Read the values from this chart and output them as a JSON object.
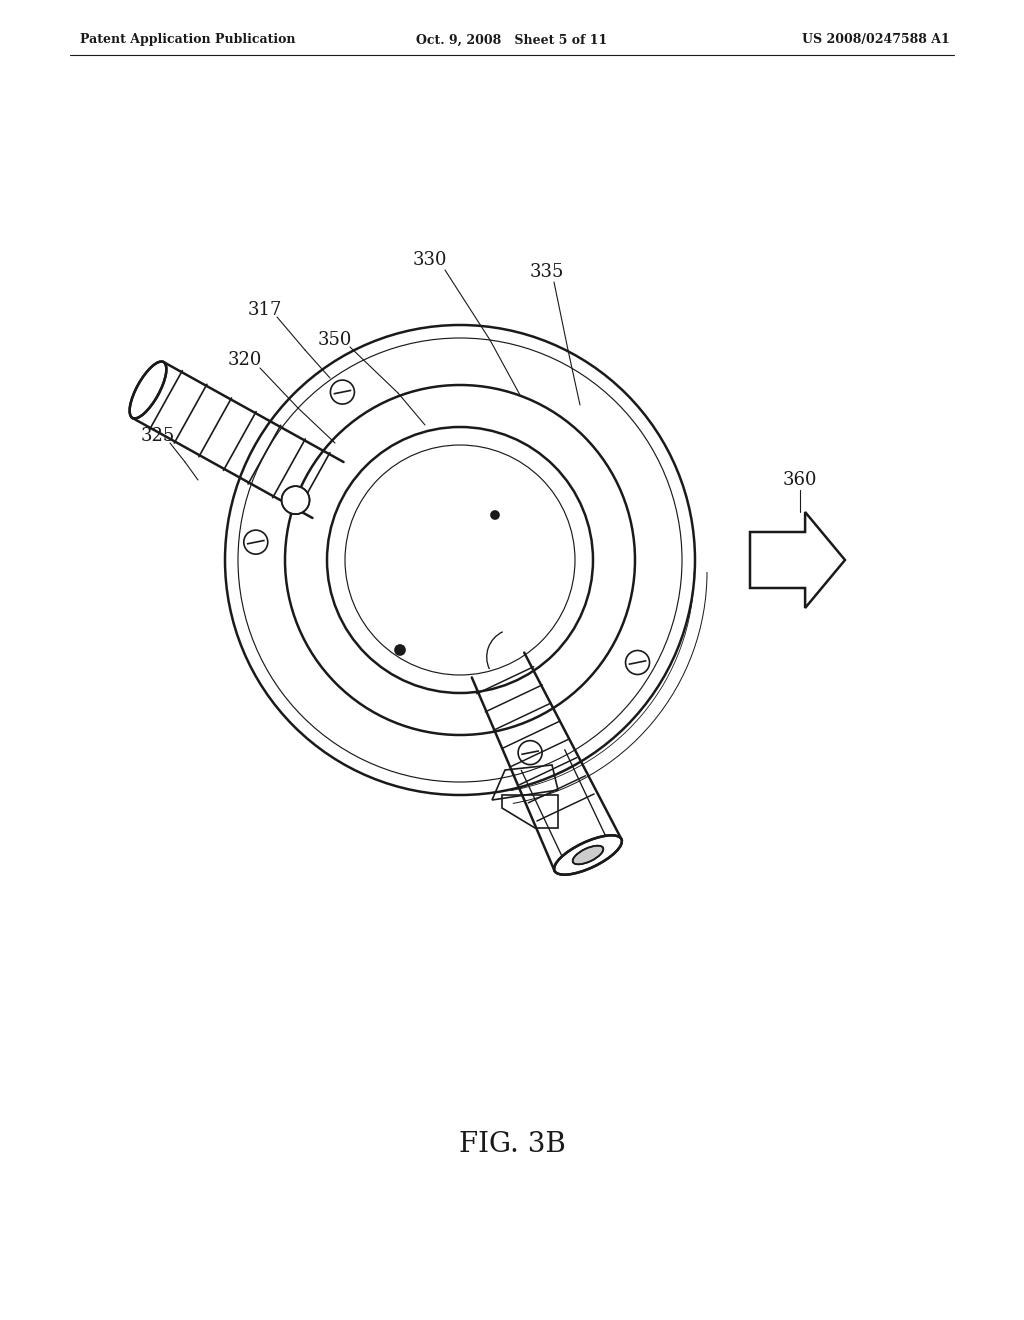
{
  "background_color": "#ffffff",
  "header_left": "Patent Application Publication",
  "header_mid": "Oct. 9, 2008   Sheet 5 of 11",
  "header_right": "US 2008/0247588 A1",
  "figure_label": "FIG. 3B",
  "line_color": "#1a1a1a",
  "text_color": "#1a1a1a",
  "fig_w": 10.24,
  "fig_h": 13.2,
  "dpi": 100
}
